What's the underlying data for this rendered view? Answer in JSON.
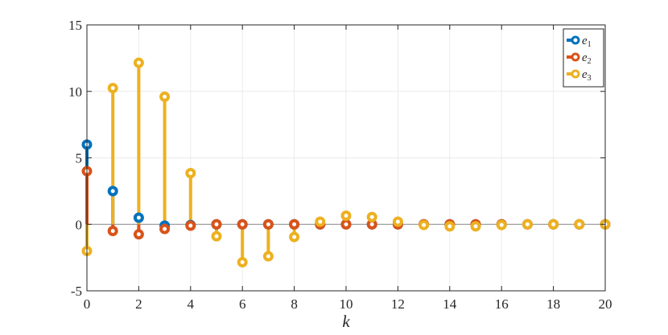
{
  "chart_data": {
    "type": "stem",
    "title": "",
    "xlabel": "k",
    "ylabel": "",
    "xlim": [
      0,
      20
    ],
    "ylim": [
      -5,
      15
    ],
    "xticks": [
      0,
      2,
      4,
      6,
      8,
      10,
      12,
      14,
      16,
      18,
      20
    ],
    "yticks": [
      -5,
      0,
      5,
      10,
      15
    ],
    "grid": true,
    "legend_position": "top-right",
    "x": [
      0,
      1,
      2,
      3,
      4,
      5,
      6,
      7,
      8,
      9,
      10,
      11,
      12,
      13,
      14,
      15,
      16,
      17,
      18,
      19,
      20
    ],
    "series": [
      {
        "name": "e1",
        "name_base": "e",
        "name_sub": "1",
        "color": "#0072BD",
        "values": [
          6.0,
          2.5,
          0.5,
          -0.1,
          -0.05,
          0,
          0,
          0,
          0,
          0,
          0,
          0,
          0,
          0,
          0,
          0,
          0,
          0,
          0,
          0,
          0
        ]
      },
      {
        "name": "e2",
        "name_base": "e",
        "name_sub": "2",
        "color": "#D95319",
        "values": [
          4.0,
          -0.5,
          -0.75,
          -0.35,
          -0.1,
          0,
          0,
          0,
          0,
          0,
          0,
          0,
          0,
          0,
          0,
          0,
          0,
          0,
          0,
          0,
          0
        ]
      },
      {
        "name": "e3",
        "name_base": "e",
        "name_sub": "3",
        "color": "#EDB120",
        "values": [
          -2.0,
          10.25,
          12.15,
          9.6,
          3.85,
          -0.9,
          -2.85,
          -2.4,
          -0.95,
          0.2,
          0.65,
          0.55,
          0.2,
          -0.05,
          -0.15,
          -0.15,
          -0.05,
          0,
          0,
          0,
          0
        ]
      }
    ]
  }
}
